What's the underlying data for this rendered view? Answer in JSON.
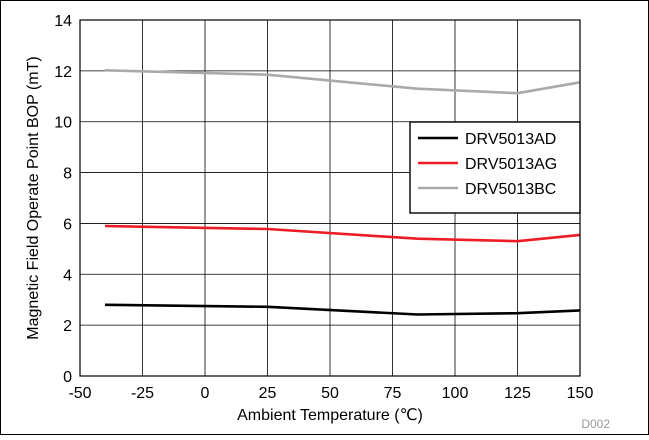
{
  "chart_data": {
    "type": "line",
    "xlabel": "Ambient Temperature (℃)",
    "ylabel": "Magnetic Field Operate Point BOP (mT)",
    "footnote": "D002",
    "xlim": [
      -50,
      150
    ],
    "ylim": [
      0,
      14
    ],
    "xticks": [
      -50,
      -25,
      0,
      25,
      50,
      75,
      100,
      125,
      150
    ],
    "yticks": [
      0,
      2,
      4,
      6,
      8,
      10,
      12,
      14
    ],
    "grid": true,
    "legend_position": "right",
    "series": [
      {
        "name": "DRV5013AD",
        "color": "#000000",
        "x": [
          -40,
          25,
          85,
          125,
          150
        ],
        "y": [
          2.8,
          2.72,
          2.42,
          2.47,
          2.58
        ]
      },
      {
        "name": "DRV5013AG",
        "color": "#ee1c25",
        "x": [
          -40,
          25,
          85,
          125,
          150
        ],
        "y": [
          5.9,
          5.78,
          5.4,
          5.3,
          5.55
        ]
      },
      {
        "name": "DRV5013BC",
        "color": "#aaaaaa",
        "x": [
          -40,
          25,
          85,
          125,
          150
        ],
        "y": [
          12.02,
          11.85,
          11.3,
          11.12,
          11.55
        ]
      }
    ]
  }
}
